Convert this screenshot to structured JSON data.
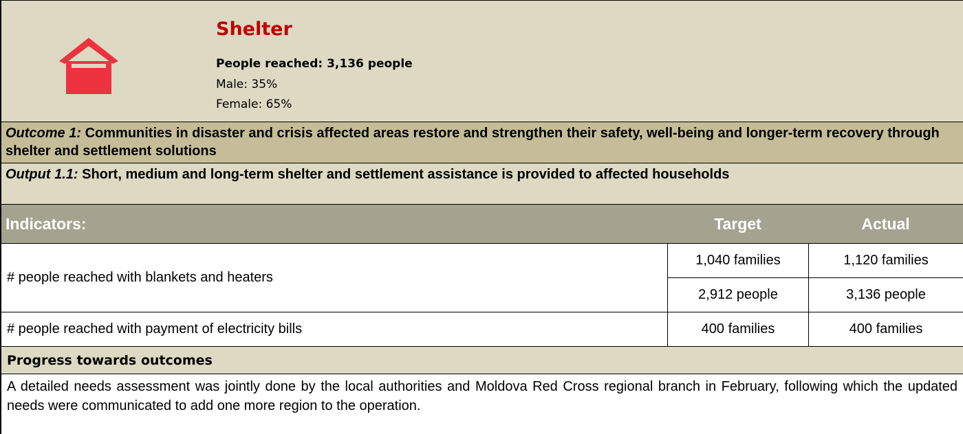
{
  "header": {
    "title": "Shelter",
    "people_reached": "People reached: 3,136 people",
    "male": "Male: 35%",
    "female": "Female: 65%"
  },
  "outcome": {
    "label": "Outcome 1:",
    "text": "Communities in disaster and crisis affected areas restore and strengthen their safety, well-being and longer-term recovery through shelter and settlement solutions"
  },
  "output": {
    "label": "Output 1.1:",
    "text": "Short, medium and long-term shelter and settlement assistance is provided to affected households"
  },
  "table": {
    "headers": [
      "Indicators:",
      "Target",
      "Actual"
    ],
    "rows": [
      {
        "indicator": "# people reached with blankets and heaters",
        "target": [
          "1,040 families",
          "2,912 people"
        ],
        "actual": [
          "1,120 families",
          "3,136 people"
        ]
      },
      {
        "indicator": "# people reached with payment of electricity bills",
        "target": [
          "400 families"
        ],
        "actual": [
          "400 families"
        ]
      }
    ]
  },
  "progress": {
    "title": "Progress towards outcomes",
    "text": "A detailed needs assessment was jointly done by the local authorities and Moldova Red Cross regional branch in February, following which the updated needs were communicated to add one more region to the operation."
  }
}
